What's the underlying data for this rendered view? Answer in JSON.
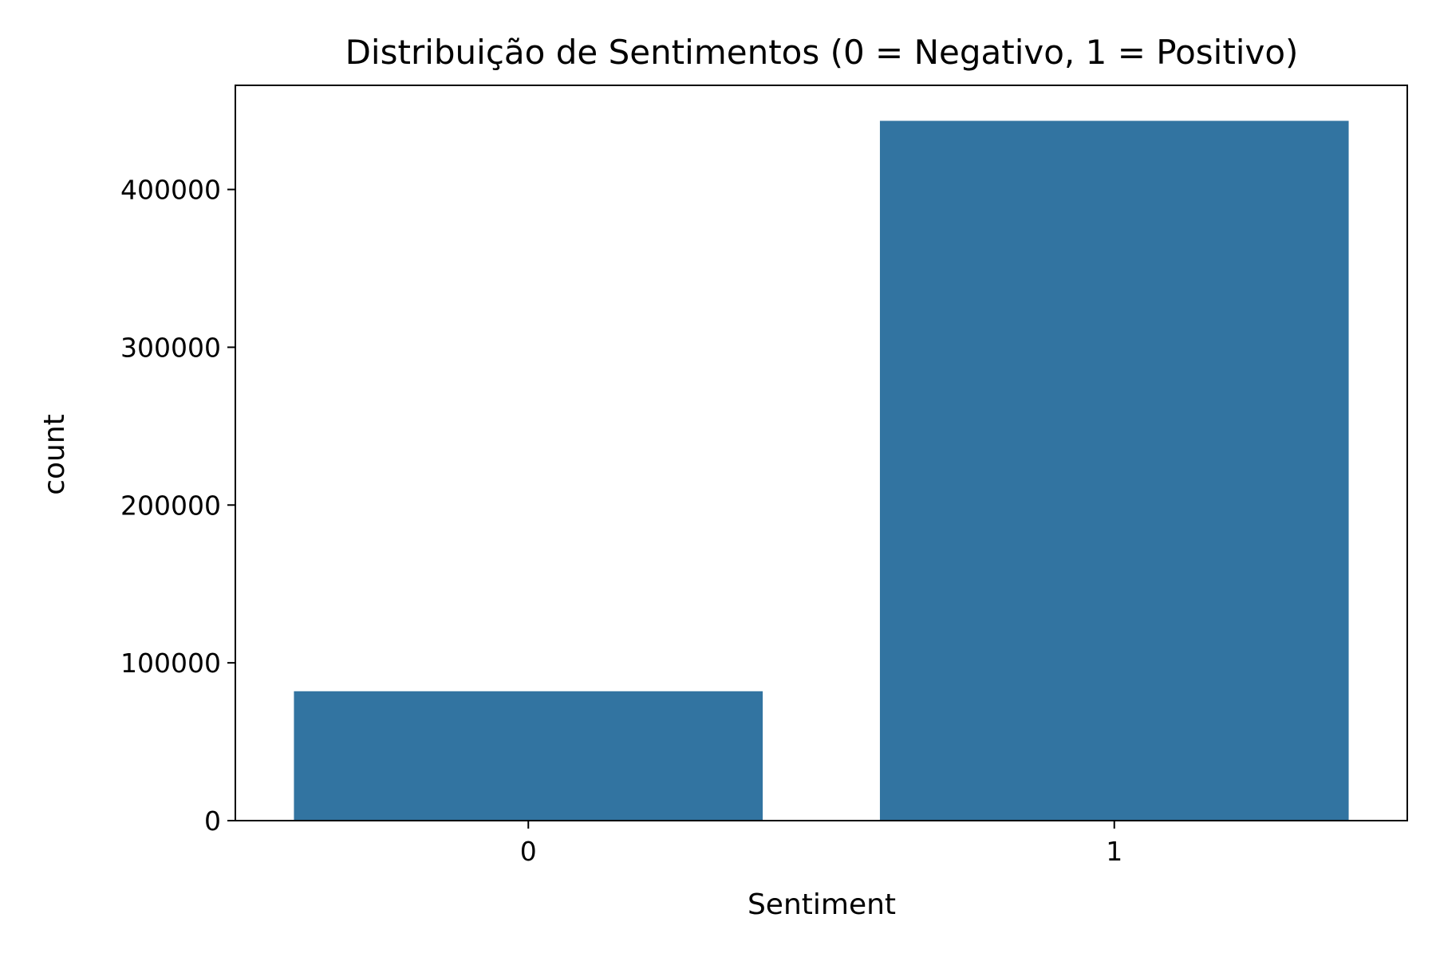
{
  "chart_data": {
    "type": "bar",
    "title": "Distribuição de Sentimentos (0 = Negativo, 1 = Positivo)",
    "xlabel": "Sentiment",
    "ylabel": "count",
    "categories": [
      "0",
      "1"
    ],
    "values": [
      82000,
      443500
    ],
    "ylim": [
      0,
      466000
    ],
    "yticks": [
      0,
      100000,
      200000,
      300000,
      400000
    ],
    "ytick_labels": [
      "0",
      "100000",
      "200000",
      "300000",
      "400000"
    ],
    "bar_color": "#3274a1",
    "grid": false,
    "legend": "none"
  }
}
